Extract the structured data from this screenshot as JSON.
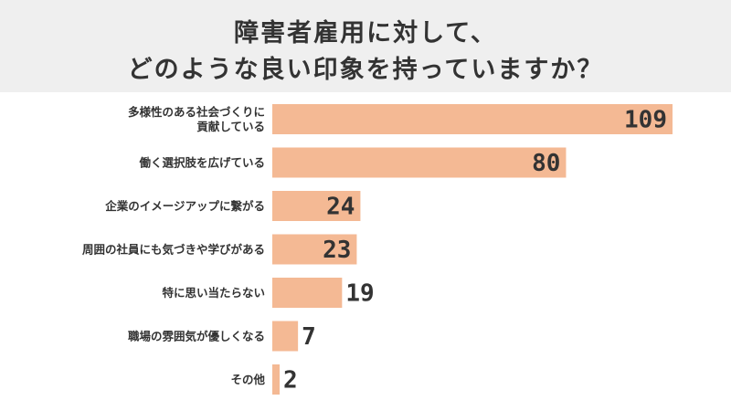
{
  "chart_data": {
    "type": "bar",
    "orientation": "horizontal",
    "title": "障害者雇用に対して、どのような良い印象を持っていますか？",
    "title_lines": [
      "障害者雇用に対して、",
      "どのような良い印象を持っていますか？"
    ],
    "categories": [
      "多様性のある社会づくりに貢献している",
      "働く選択肢を広げている",
      "企業のイメージアップに繋がる",
      "周囲の社員にも気づきや学びがある",
      "特に思い当たらない",
      "職場の雰囲気が優しくなる",
      "その他"
    ],
    "category_label_lines": [
      [
        "多様性のある社会づくりに",
        "貢献している"
      ],
      [
        "働く選択肢を広げている"
      ],
      [
        "企業のイメージアップに繋がる"
      ],
      [
        "周囲の社員にも気づきや学びがある"
      ],
      [
        "特に思い当たらない"
      ],
      [
        "職場の雰囲気が優しくなる"
      ],
      [
        "その他"
      ]
    ],
    "values": [
      109,
      80,
      24,
      23,
      19,
      7,
      2
    ],
    "data_labels": [
      "109",
      "80",
      "24",
      "23",
      "19",
      "7",
      "2"
    ],
    "xlim": [
      0,
      109
    ],
    "bar_color": "#f4b994",
    "grid": false,
    "legend": false
  }
}
